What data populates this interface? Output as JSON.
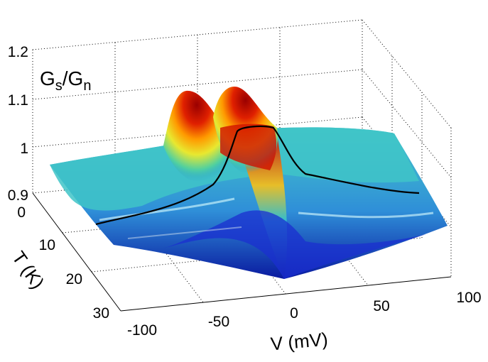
{
  "chart_data": {
    "type": "surface",
    "title": "",
    "zlabel": {
      "main": "G",
      "sub1": "s",
      "slash": "/G",
      "sub2": "n"
    },
    "xlabel": "V (mV)",
    "ylabel": "T (K)",
    "x_ticks": [
      "-100",
      "-50",
      "0",
      "50",
      "100"
    ],
    "y_ticks": [
      "0",
      "10",
      "20",
      "30"
    ],
    "z_ticks": [
      "0.9",
      "1",
      "1.1",
      "1.2"
    ],
    "xlim": [
      -100,
      100
    ],
    "ylim": [
      0,
      30
    ],
    "zlim": [
      0.9,
      1.2
    ],
    "grid": true,
    "colormap": "jet",
    "series": [
      {
        "description_values": "Gs/Gn surface: coherence peaks near ±20 mV at low T (~1.1), gap minimum at 0 mV, flattening toward ~1.0 at high T",
        "peaks": [
          {
            "V": -22,
            "T": 2,
            "G": 1.1
          },
          {
            "V": 22,
            "T": 2,
            "G": 1.1
          }
        ],
        "min": {
          "V": 0,
          "T": 30,
          "G": 0.9
        },
        "background": 1.0
      }
    ],
    "highlight_line": {
      "T": 8,
      "points": [
        [
          -100,
          0.96
        ],
        [
          -60,
          0.97
        ],
        [
          -30,
          0.99
        ],
        [
          -18,
          1.06
        ],
        [
          -5,
          1.08
        ],
        [
          5,
          1.08
        ],
        [
          18,
          1.06
        ],
        [
          30,
          0.99
        ],
        [
          60,
          0.97
        ],
        [
          100,
          0.96
        ]
      ]
    }
  }
}
